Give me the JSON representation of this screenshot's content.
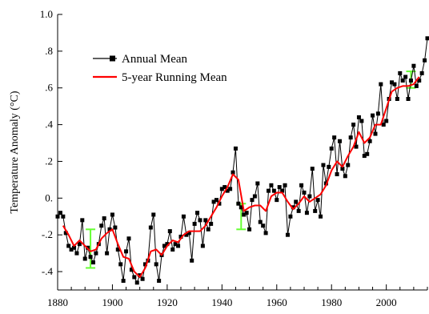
{
  "chart_data": {
    "type": "line",
    "title": "",
    "xlabel": "",
    "ylabel": "Temperature Anomaly (°C)",
    "xlim": [
      1880,
      2015
    ],
    "ylim": [
      -0.5,
      1.0
    ],
    "x_ticks": [
      1880,
      1900,
      1920,
      1940,
      1960,
      1980,
      2000
    ],
    "x_tick_labels": [
      "1880",
      "1900",
      "1920",
      "1940",
      "1960",
      "1980",
      "2000"
    ],
    "y_ticks": [
      -0.4,
      -0.2,
      0.0,
      0.2,
      0.4,
      0.6,
      0.8,
      1.0
    ],
    "y_tick_labels": [
      "-.4",
      "-.2",
      "0.",
      ".2",
      ".4",
      ".6",
      ".8",
      "1.0"
    ],
    "grid": false,
    "legend_position": "top-left",
    "series": [
      {
        "name": "Annual Mean",
        "color": "#000000",
        "marker": "square",
        "x": [
          1880,
          1881,
          1882,
          1883,
          1884,
          1885,
          1886,
          1887,
          1888,
          1889,
          1890,
          1891,
          1892,
          1893,
          1894,
          1895,
          1896,
          1897,
          1898,
          1899,
          1900,
          1901,
          1902,
          1903,
          1904,
          1905,
          1906,
          1907,
          1908,
          1909,
          1910,
          1911,
          1912,
          1913,
          1914,
          1915,
          1916,
          1917,
          1918,
          1919,
          1920,
          1921,
          1922,
          1923,
          1924,
          1925,
          1926,
          1927,
          1928,
          1929,
          1930,
          1931,
          1932,
          1933,
          1934,
          1935,
          1936,
          1937,
          1938,
          1939,
          1940,
          1941,
          1942,
          1943,
          1944,
          1945,
          1946,
          1947,
          1948,
          1949,
          1950,
          1951,
          1952,
          1953,
          1954,
          1955,
          1956,
          1957,
          1958,
          1959,
          1960,
          1961,
          1962,
          1963,
          1964,
          1965,
          1966,
          1967,
          1968,
          1969,
          1970,
          1971,
          1972,
          1973,
          1974,
          1975,
          1976,
          1977,
          1978,
          1979,
          1980,
          1981,
          1982,
          1983,
          1984,
          1985,
          1986,
          1987,
          1988,
          1989,
          1990,
          1991,
          1992,
          1993,
          1994,
          1995,
          1996,
          1997,
          1998,
          1999,
          2000,
          2001,
          2002,
          2003,
          2004,
          2005,
          2006,
          2007,
          2008,
          2009,
          2010,
          2011,
          2012,
          2013,
          2014,
          2015
        ],
        "y": [
          -0.1,
          -0.08,
          -0.1,
          -0.19,
          -0.26,
          -0.28,
          -0.27,
          -0.3,
          -0.25,
          -0.12,
          -0.33,
          -0.27,
          -0.32,
          -0.35,
          -0.3,
          -0.25,
          -0.15,
          -0.11,
          -0.3,
          -0.17,
          -0.09,
          -0.16,
          -0.28,
          -0.36,
          -0.45,
          -0.29,
          -0.22,
          -0.39,
          -0.43,
          -0.46,
          -0.42,
          -0.44,
          -0.36,
          -0.34,
          -0.16,
          -0.09,
          -0.36,
          -0.45,
          -0.31,
          -0.26,
          -0.25,
          -0.18,
          -0.28,
          -0.25,
          -0.26,
          -0.21,
          -0.1,
          -0.2,
          -0.19,
          -0.34,
          -0.14,
          -0.08,
          -0.12,
          -0.26,
          -0.12,
          -0.17,
          -0.14,
          -0.02,
          -0.01,
          -0.03,
          0.05,
          0.06,
          0.04,
          0.05,
          0.14,
          0.27,
          -0.03,
          -0.05,
          -0.09,
          -0.08,
          -0.17,
          -0.01,
          0.01,
          0.08,
          -0.13,
          -0.15,
          -0.19,
          0.04,
          0.07,
          0.04,
          -0.01,
          0.06,
          0.04,
          0.07,
          -0.2,
          -0.1,
          -0.05,
          -0.02,
          -0.07,
          0.07,
          0.03,
          -0.08,
          0.01,
          0.16,
          -0.07,
          -0.01,
          -0.1,
          0.18,
          0.08,
          0.17,
          0.27,
          0.33,
          0.13,
          0.31,
          0.16,
          0.12,
          0.18,
          0.33,
          0.4,
          0.28,
          0.44,
          0.42,
          0.23,
          0.24,
          0.31,
          0.45,
          0.35,
          0.46,
          0.62,
          0.4,
          0.42,
          0.54,
          0.63,
          0.62,
          0.54,
          0.68,
          0.64,
          0.66,
          0.54,
          0.64,
          0.72,
          0.61,
          0.64,
          0.68,
          0.75,
          0.87
        ]
      },
      {
        "name": "5-year Running Mean",
        "color": "#ff0000",
        "marker": "none",
        "x": [
          1882,
          1884,
          1886,
          1888,
          1890,
          1892,
          1894,
          1896,
          1898,
          1900,
          1902,
          1904,
          1906,
          1908,
          1910,
          1912,
          1914,
          1916,
          1918,
          1920,
          1922,
          1924,
          1926,
          1928,
          1930,
          1932,
          1934,
          1936,
          1938,
          1940,
          1942,
          1944,
          1946,
          1948,
          1950,
          1952,
          1954,
          1956,
          1958,
          1960,
          1962,
          1964,
          1966,
          1968,
          1970,
          1972,
          1974,
          1976,
          1978,
          1980,
          1982,
          1984,
          1986,
          1988,
          1990,
          1992,
          1994,
          1996,
          1998,
          2000,
          2002,
          2004,
          2006,
          2008,
          2010,
          2012
        ],
        "y": [
          -0.15,
          -0.2,
          -0.26,
          -0.23,
          -0.26,
          -0.29,
          -0.28,
          -0.22,
          -0.19,
          -0.17,
          -0.25,
          -0.32,
          -0.33,
          -0.4,
          -0.43,
          -0.38,
          -0.29,
          -0.28,
          -0.31,
          -0.26,
          -0.23,
          -0.24,
          -0.2,
          -0.18,
          -0.18,
          -0.18,
          -0.15,
          -0.1,
          -0.05,
          0.01,
          0.06,
          0.13,
          0.1,
          -0.07,
          -0.05,
          -0.04,
          -0.04,
          -0.07,
          0.01,
          0.03,
          0.03,
          -0.02,
          -0.06,
          -0.03,
          0.01,
          -0.02,
          0.0,
          0.02,
          0.07,
          0.15,
          0.2,
          0.17,
          0.23,
          0.28,
          0.36,
          0.3,
          0.33,
          0.4,
          0.4,
          0.49,
          0.58,
          0.6,
          0.61,
          0.61,
          0.62,
          0.66
        ]
      }
    ],
    "error_bars": [
      {
        "x": 1892,
        "ylow": -0.38,
        "yhigh": -0.17,
        "color": "#66ff33"
      },
      {
        "x": 1947,
        "ylow": -0.17,
        "yhigh": -0.03,
        "color": "#66ff33"
      },
      {
        "x": 2009,
        "ylow": 0.6,
        "yhigh": 0.69,
        "color": "#66ff33"
      }
    ]
  }
}
